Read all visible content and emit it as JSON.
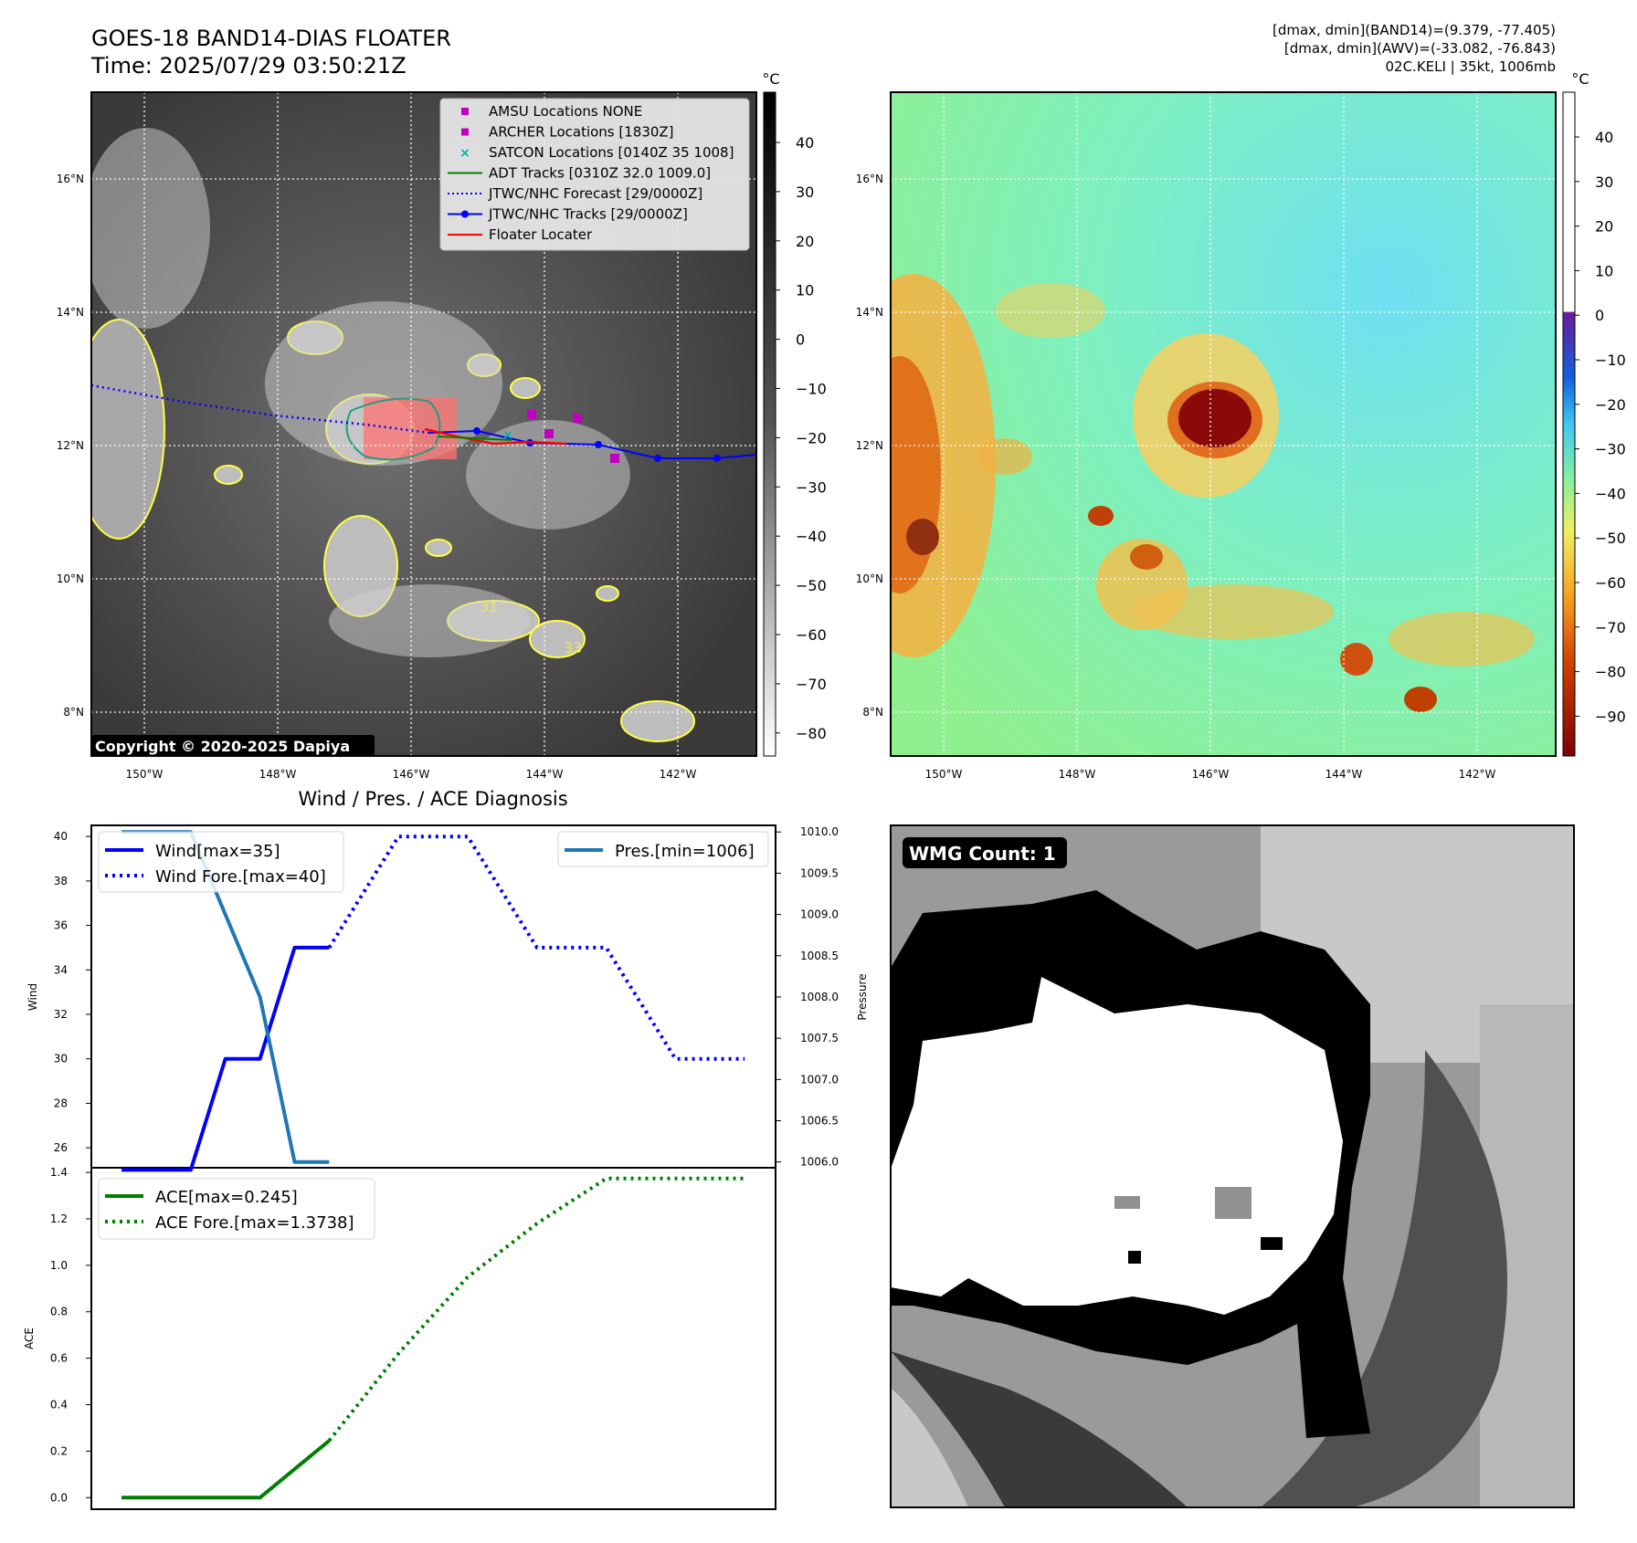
{
  "header": {
    "title_line1": "GOES-18 BAND14-DIAS FLOATER",
    "title_line2": "Time: 2025/07/29 03:50:21Z",
    "info_line1": "[dmax, dmin](BAND14)=(9.379, -77.405)",
    "info_line2": "[dmax, dmin](AWV)=(-33.082, -76.843)",
    "info_line3": "02C.KELI | 35kt, 1006mb"
  },
  "map": {
    "lon_ticks": [
      "150°W",
      "148°W",
      "146°W",
      "144°W",
      "142°W"
    ],
    "lat_ticks": [
      "16°N",
      "14°N",
      "12°N",
      "10°N",
      "8°N"
    ],
    "copyright": "Copyright © 2020-2025 Dapiya",
    "contour_labels": [
      "31",
      "33"
    ],
    "colors": {
      "amsu": "#c000c0",
      "archer": "#c000c0",
      "satcon": "#00b0b0",
      "adt": "#008000",
      "jtwc": "#0000ff",
      "floater": "#ff0000",
      "cloud_edge": "#ffff40"
    },
    "legend": [
      {
        "label": "AMSU Locations NONE",
        "marker": "square",
        "color": "#c000c0"
      },
      {
        "label": "ARCHER Locations [1830Z]",
        "marker": "square",
        "color": "#c000c0"
      },
      {
        "label": "SATCON Locations [0140Z 35 1008]",
        "marker": "x",
        "color": "#00b0b0"
      },
      {
        "label": "ADT Tracks [0310Z 32.0 1009.0]",
        "marker": "line",
        "color": "#008000"
      },
      {
        "label": "JTWC/NHC Forecast [29/0000Z]",
        "marker": "dotted",
        "color": "#0000ff"
      },
      {
        "label": "JTWC/NHC Tracks [29/0000Z]",
        "marker": "line-dot",
        "color": "#0000ff"
      },
      {
        "label": "Floater Locater",
        "marker": "line",
        "color": "#ff0000"
      }
    ]
  },
  "colorbar_ir": {
    "unit": "°C",
    "ticks": [
      "40",
      "30",
      "20",
      "10",
      "0",
      "−10",
      "−20",
      "−30",
      "−40",
      "−50",
      "−60",
      "−70",
      "−80"
    ]
  },
  "colorbar_wv": {
    "unit": "°C",
    "ticks": [
      "40",
      "30",
      "20",
      "10",
      "0",
      "−10",
      "−20",
      "−30",
      "−40",
      "−50",
      "−60",
      "−70",
      "−80",
      "−90"
    ]
  },
  "chart_data": [
    {
      "type": "line",
      "title": "Wind / Pres. / ACE Diagnosis",
      "ylabel": "Wind",
      "y2label": "Pressure",
      "ylim": [
        25.1,
        40.5
      ],
      "y2lim": [
        1005.93,
        1010.08
      ],
      "yticks": [
        26,
        28,
        30,
        32,
        34,
        36,
        38,
        40
      ],
      "y2ticks": [
        "1006.0",
        "1006.5",
        "1007.0",
        "1007.5",
        "1008.0",
        "1008.5",
        "1009.0",
        "1009.5",
        "1010.0"
      ],
      "series": [
        {
          "name": "Wind[max=35]",
          "color": "#0000ff",
          "style": "solid",
          "points": [
            [
              0,
              25
            ],
            [
              1,
              25
            ],
            [
              1.5,
              30
            ],
            [
              2,
              30
            ],
            [
              2.5,
              35
            ],
            [
              3,
              35
            ]
          ]
        },
        {
          "name": "Wind Fore.[max=40]",
          "color": "#0000ff",
          "style": "dotted",
          "points": [
            [
              3,
              35
            ],
            [
              4,
              40
            ],
            [
              5,
              40
            ],
            [
              6,
              35
            ],
            [
              7,
              35
            ],
            [
              8,
              30
            ],
            [
              9,
              30
            ]
          ]
        },
        {
          "name": "Pres.[min=1006]",
          "color": "#1f77b4",
          "style": "solid",
          "axis": "right",
          "points": [
            [
              0,
              1010
            ],
            [
              1,
              1010
            ],
            [
              2,
              1008
            ],
            [
              2.5,
              1006
            ],
            [
              3,
              1006
            ]
          ]
        }
      ]
    },
    {
      "type": "line",
      "ylabel": "ACE",
      "ylim": [
        -0.05,
        1.42
      ],
      "yticks": [
        "0.0",
        "0.2",
        "0.4",
        "0.6",
        "0.8",
        "1.0",
        "1.2",
        "1.4"
      ],
      "series": [
        {
          "name": "ACE[max=0.245]",
          "color": "#008000",
          "style": "solid",
          "points": [
            [
              0,
              0
            ],
            [
              1,
              0
            ],
            [
              2,
              0
            ],
            [
              2.5,
              0.1225
            ],
            [
              3,
              0.245
            ]
          ]
        },
        {
          "name": "ACE Fore.[max=1.3738]",
          "color": "#008000",
          "style": "dotted",
          "points": [
            [
              3,
              0.245
            ],
            [
              4,
              0.62
            ],
            [
              5,
              0.95
            ],
            [
              6,
              1.18
            ],
            [
              7,
              1.3738
            ],
            [
              8,
              1.3738
            ],
            [
              9,
              1.3738
            ]
          ]
        }
      ]
    }
  ],
  "wmg": {
    "label": "WMG Count: 1"
  }
}
